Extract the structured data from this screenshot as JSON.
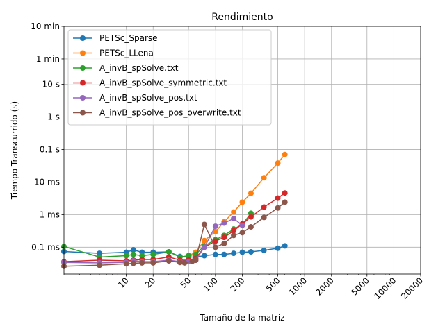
{
  "chart_data": {
    "type": "line",
    "title": "Rendimiento",
    "xlabel": "Tamaño de la matriz",
    "ylabel": "Tiempo Transcurrido (s)",
    "x_scale": "log",
    "y_scale": "log",
    "xlim": [
      2,
      20000
    ],
    "ylim": [
      1.5e-05,
      600
    ],
    "x_ticks": [
      {
        "value": 10,
        "label": "10"
      },
      {
        "value": 20,
        "label": "20"
      },
      {
        "value": 50,
        "label": "50"
      },
      {
        "value": 100,
        "label": "100"
      },
      {
        "value": 200,
        "label": "200"
      },
      {
        "value": 500,
        "label": "500"
      },
      {
        "value": 1000,
        "label": "1000"
      },
      {
        "value": 2000,
        "label": "2000"
      },
      {
        "value": 5000,
        "label": "5000"
      },
      {
        "value": 10000,
        "label": "10000"
      },
      {
        "value": 20000,
        "label": "20000"
      }
    ],
    "y_ticks": [
      {
        "value": 0.0001,
        "label": "0.1 ms"
      },
      {
        "value": 0.001,
        "label": "1 ms"
      },
      {
        "value": 0.01,
        "label": "10 ms"
      },
      {
        "value": 0.1,
        "label": "0.1 s"
      },
      {
        "value": 1,
        "label": "1 s"
      },
      {
        "value": 10,
        "label": "10 s"
      },
      {
        "value": 60,
        "label": "1 min"
      },
      {
        "value": 600,
        "label": "10 min"
      }
    ],
    "grid": true,
    "legend_position": "top-left",
    "series": [
      {
        "name": "PETSc_Sparse",
        "color": "#1f77b4",
        "x": [
          2,
          5,
          10,
          12,
          15,
          20,
          30,
          40,
          50,
          60,
          75,
          100,
          125,
          160,
          200,
          250,
          350,
          500,
          600
        ],
        "y": [
          7.4e-05,
          6.5e-05,
          7e-05,
          8.3e-05,
          7e-05,
          7e-05,
          7.2e-05,
          5.2e-05,
          5e-05,
          5e-05,
          5.5e-05,
          6e-05,
          6e-05,
          6.5e-05,
          7e-05,
          7.2e-05,
          8e-05,
          9.3e-05,
          0.00011
        ]
      },
      {
        "name": "PETSc_LLena",
        "color": "#ff7f0e",
        "x": [
          50,
          60,
          75,
          100,
          125,
          160,
          200,
          250,
          350,
          500,
          600
        ],
        "y": [
          5.5e-05,
          7e-05,
          0.00016,
          0.0003,
          0.0006,
          0.0012,
          0.0024,
          0.0045,
          0.0135,
          0.038,
          0.07
        ]
      },
      {
        "name": "A_invB_spSolve.txt",
        "color": "#2ca02c",
        "x": [
          2,
          5,
          10,
          12,
          15,
          20,
          30,
          40,
          50,
          60,
          75,
          100,
          125,
          160,
          200,
          250
        ],
        "y": [
          0.000105,
          5e-05,
          5.5e-05,
          6e-05,
          5.5e-05,
          6e-05,
          7.2e-05,
          5e-05,
          5.5e-05,
          6e-05,
          0.00011,
          0.00017,
          0.00023,
          0.00036,
          0.0005,
          0.0011
        ]
      },
      {
        "name": "A_invB_spSolve_symmetric.txt",
        "color": "#d62728",
        "x": [
          2,
          5,
          10,
          12,
          15,
          20,
          30,
          40,
          50,
          60,
          75,
          100,
          125,
          160,
          200,
          250,
          350,
          500,
          600
        ],
        "y": [
          3.6e-05,
          4e-05,
          3.8e-05,
          4e-05,
          4.2e-05,
          4.2e-05,
          5e-05,
          4e-05,
          4e-05,
          4.5e-05,
          0.0001,
          0.000155,
          0.0002,
          0.00032,
          0.00052,
          0.00085,
          0.0017,
          0.0032,
          0.0046
        ]
      },
      {
        "name": "A_invB_spSolve_pos.txt",
        "color": "#9467bd",
        "x": [
          2,
          5,
          10,
          12,
          15,
          20,
          30,
          40,
          50,
          60,
          75,
          100,
          125,
          160,
          200
        ],
        "y": [
          3.4e-05,
          3.3e-05,
          3.4e-05,
          3.8e-05,
          3.6e-05,
          3.6e-05,
          4e-05,
          3.6e-05,
          3.6e-05,
          4e-05,
          0.0001,
          0.00044,
          0.00055,
          0.00076,
          0.00047
        ]
      },
      {
        "name": "A_invB_spSolve_pos_overwrite.txt",
        "color": "#8c564b",
        "x": [
          2,
          5,
          10,
          12,
          15,
          20,
          30,
          40,
          45,
          55,
          60,
          75,
          100,
          125,
          160,
          200,
          250,
          350,
          500,
          600
        ],
        "y": [
          2.6e-05,
          2.8e-05,
          3.1e-05,
          3.2e-05,
          3.3e-05,
          3.3e-05,
          3.8e-05,
          3.4e-05,
          3.3e-05,
          3.7e-05,
          4e-05,
          0.0005,
          0.0001,
          0.00013,
          0.00023,
          0.00028,
          0.00042,
          0.00082,
          0.0016,
          0.0024
        ]
      }
    ]
  }
}
